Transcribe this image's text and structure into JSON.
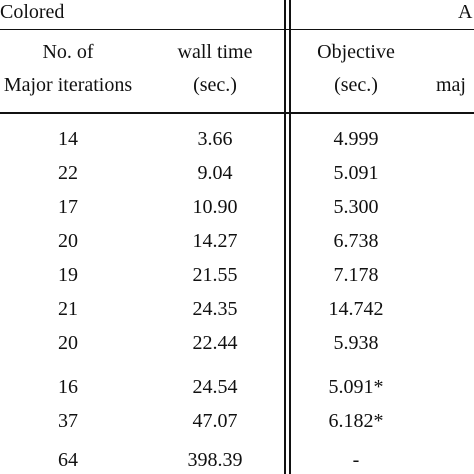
{
  "table": {
    "group_headers": {
      "colored": "Colored",
      "right_group": "A"
    },
    "column_headers": {
      "col1_line1": "No. of",
      "col1_line2": "Major iterations",
      "col2_line1": "wall time",
      "col2_line2": "(sec.)",
      "col3_line1": "Objective",
      "col3_line2": "(sec.)",
      "col4_line2": "maj"
    },
    "rows": [
      {
        "iterations": "14",
        "wall_time": "3.66",
        "objective": "4.999"
      },
      {
        "iterations": "22",
        "wall_time": "9.04",
        "objective": "5.091"
      },
      {
        "iterations": "17",
        "wall_time": "10.90",
        "objective": "5.300"
      },
      {
        "iterations": "20",
        "wall_time": "14.27",
        "objective": "6.738"
      },
      {
        "iterations": "19",
        "wall_time": "21.55",
        "objective": "7.178"
      },
      {
        "iterations": "21",
        "wall_time": "24.35",
        "objective": "14.742"
      },
      {
        "iterations": "20",
        "wall_time": "22.44",
        "objective": "5.938"
      },
      {
        "iterations": "16",
        "wall_time": "24.54",
        "objective": "5.091*"
      },
      {
        "iterations": "37",
        "wall_time": "47.07",
        "objective": "6.182*"
      },
      {
        "iterations": "64",
        "wall_time": "398.39",
        "objective": "-"
      }
    ]
  }
}
